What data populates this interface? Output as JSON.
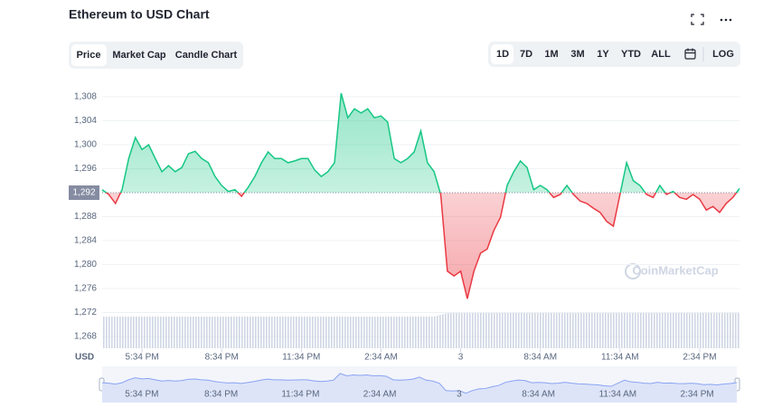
{
  "header": {
    "title": "Ethereum to USD Chart",
    "tabs": [
      "Price",
      "Market Cap",
      "Candle Chart"
    ],
    "ranges": [
      "1D",
      "7D",
      "1M",
      "3M",
      "1Y",
      "YTD",
      "ALL"
    ],
    "log": "LOG"
  },
  "chart_data": {
    "type": "line",
    "currency": "USD",
    "watermark": "CoinMarketCap",
    "categories": [
      null,
      null,
      null,
      null,
      null,
      null,
      "5:34 PM",
      null,
      null,
      null,
      null,
      null,
      null,
      null,
      null,
      null,
      null,
      null,
      "8:34 PM",
      null,
      null,
      null,
      null,
      null,
      null,
      null,
      null,
      null,
      null,
      null,
      "11:34 PM",
      null,
      null,
      null,
      null,
      null,
      null,
      null,
      null,
      null,
      null,
      null,
      "2:34 AM",
      null,
      null,
      null,
      null,
      null,
      null,
      null,
      null,
      null,
      null,
      null,
      "3",
      null,
      null,
      null,
      null,
      null,
      null,
      null,
      null,
      null,
      null,
      null,
      "8:34 AM",
      null,
      null,
      null,
      null,
      null,
      null,
      null,
      null,
      null,
      null,
      null,
      "11:34 AM",
      null,
      null,
      null,
      null,
      null,
      null,
      null,
      null,
      null,
      null,
      null,
      "2:34 PM",
      null,
      null,
      null,
      null,
      null,
      null
    ],
    "series": [
      {
        "name": "Price",
        "up_color": "#16c784",
        "down_color": "#ea3943",
        "values": [
          1292.5,
          1291.7,
          1290.2,
          1292.5,
          1297.7,
          1301.2,
          1299.2,
          1300.0,
          1297.7,
          1295.5,
          1296.5,
          1295.5,
          1296.2,
          1298.5,
          1298.9,
          1297.7,
          1297.0,
          1294.7,
          1293.2,
          1292.2,
          1292.5,
          1291.4,
          1292.9,
          1294.7,
          1297.0,
          1298.8,
          1297.7,
          1297.7,
          1297.0,
          1297.3,
          1297.7,
          1297.7,
          1295.8,
          1294.7,
          1295.5,
          1297.0,
          1308.6,
          1304.5,
          1306.0,
          1305.3,
          1306.0,
          1304.5,
          1304.8,
          1303.8,
          1297.7,
          1297.0,
          1297.7,
          1298.8,
          1302.3,
          1297.0,
          1295.5,
          1291.7,
          1278.9,
          1278.1,
          1278.9,
          1274.3,
          1278.9,
          1281.9,
          1282.6,
          1285.7,
          1287.9,
          1293.2,
          1295.5,
          1297.3,
          1296.2,
          1292.5,
          1293.2,
          1292.5,
          1291.2,
          1291.7,
          1293.2,
          1291.7,
          1290.6,
          1290.2,
          1289.4,
          1288.7,
          1287.2,
          1286.4,
          1291.7,
          1297.0,
          1294.0,
          1293.2,
          1291.7,
          1291.2,
          1293.2,
          1291.7,
          1292.2,
          1291.2,
          1290.9,
          1291.7,
          1290.9,
          1289.1,
          1289.7,
          1288.7,
          1290.2,
          1291.2,
          1292.7
        ]
      }
    ],
    "baseline": {
      "value": 1292,
      "label": "1,292"
    },
    "ylim": [
      1266,
      1310
    ],
    "yticks": [
      {
        "value": 1268,
        "label": "1,268"
      },
      {
        "value": 1272,
        "label": "1,272"
      },
      {
        "value": 1276,
        "label": "1,276"
      },
      {
        "value": 1280,
        "label": "1,280"
      },
      {
        "value": 1284,
        "label": "1,284"
      },
      {
        "value": 1288,
        "label": "1,288"
      },
      {
        "value": 1296,
        "label": "1,296"
      },
      {
        "value": 1300,
        "label": "1,300"
      },
      {
        "value": 1304,
        "label": "1,304"
      },
      {
        "value": 1308,
        "label": "1,308"
      }
    ],
    "grid": true
  }
}
